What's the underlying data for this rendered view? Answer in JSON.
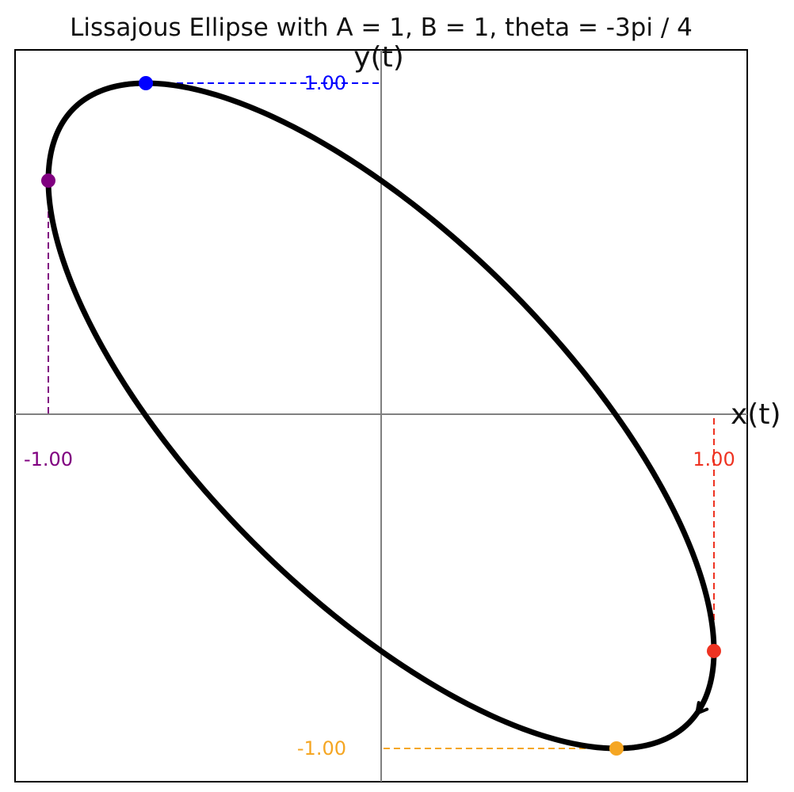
{
  "chart_data": {
    "type": "line",
    "title": "Lissajous Ellipse with A = 1, B = 1, theta = -3pi / 4",
    "xlabel": "x(t)",
    "ylabel": "y(t)",
    "xlim": [
      -1.1,
      1.1
    ],
    "ylim": [
      -1.1,
      1.1
    ],
    "grid": false,
    "parametric": {
      "A": 1,
      "B": 1,
      "theta": -2.356194490192345,
      "x": "sin(A*t + theta)",
      "y": "sin(B*t)"
    },
    "direction_arrow": "counter-clockwise near lower right",
    "curve_color": "#000000",
    "axis_line_color": "#808080",
    "extreme_points": [
      {
        "name": "max-y",
        "x": -0.707,
        "y": 1.0,
        "label": "1.00",
        "label_axis": "y",
        "color": "#0000ff"
      },
      {
        "name": "min-x",
        "x": -1.0,
        "y": 0.707,
        "label": "-1.00",
        "label_axis": "x",
        "color": "#800080"
      },
      {
        "name": "max-x",
        "x": 1.0,
        "y": -0.707,
        "label": "1.00",
        "label_axis": "x",
        "color": "#ee3322"
      },
      {
        "name": "min-y",
        "x": 0.707,
        "y": -1.0,
        "label": "-1.00",
        "label_axis": "y",
        "color": "#f5a623"
      }
    ]
  }
}
